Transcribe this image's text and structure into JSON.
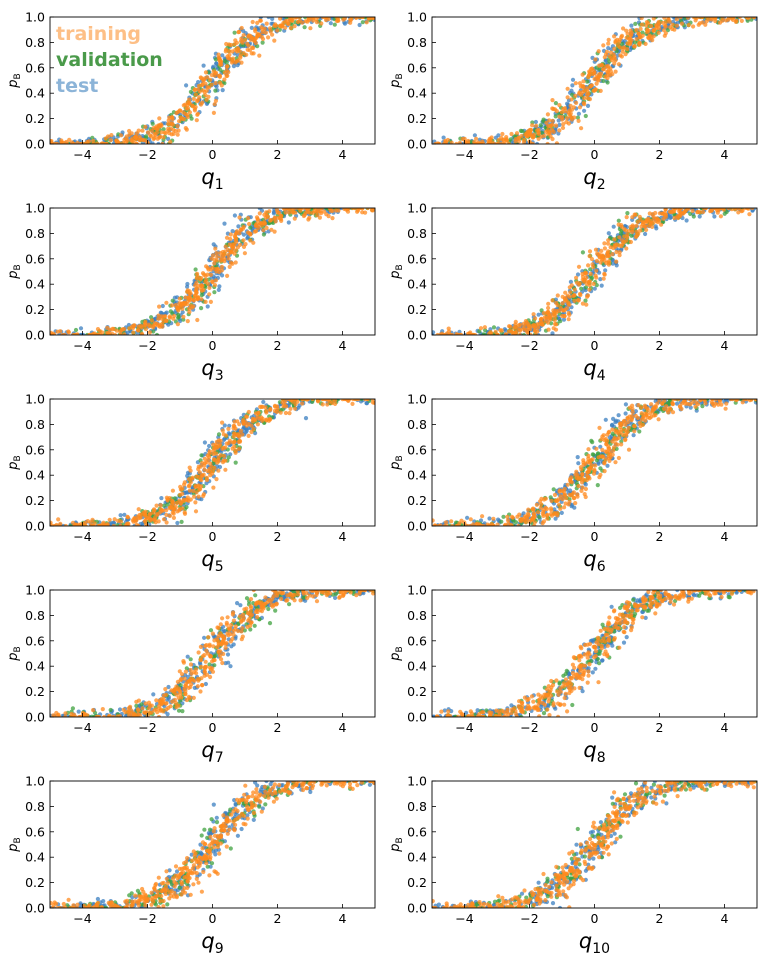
{
  "chart_data": [
    {
      "type": "scatter",
      "xlabel_base": "q",
      "xlabel_sub": "1",
      "ylabel_base": "p",
      "ylabel_sub": "B",
      "xlim": [
        -5,
        5
      ],
      "ylim": [
        0,
        1
      ],
      "xticks": [
        "−4",
        "−2",
        "0",
        "2",
        "4"
      ],
      "yticks": [
        "0.0",
        "0.2",
        "0.4",
        "0.6",
        "0.8",
        "1.0"
      ],
      "series": [
        {
          "name": "training",
          "curve": "sigmoid",
          "x0": 0.0,
          "k": 1.3,
          "x_range": [
            -5,
            5
          ],
          "y_spread": 0.1
        },
        {
          "name": "validation",
          "curve": "sigmoid",
          "x0": 0.0,
          "k": 1.3,
          "x_range": [
            -4.5,
            5
          ],
          "y_spread": 0.1
        },
        {
          "name": "test",
          "curve": "sigmoid",
          "x0": 0.0,
          "k": 1.3,
          "x_range": [
            -5,
            5
          ],
          "y_spread": 0.1
        }
      ]
    },
    {
      "type": "scatter",
      "xlabel_base": "q",
      "xlabel_sub": "2",
      "ylabel_base": "p",
      "ylabel_sub": "B",
      "xlim": [
        -5,
        5
      ],
      "ylim": [
        0,
        1
      ],
      "xticks": [
        "−4",
        "−2",
        "0",
        "2",
        "4"
      ],
      "yticks": [
        "0.0",
        "0.2",
        "0.4",
        "0.6",
        "0.8",
        "1.0"
      ],
      "series": [
        {
          "name": "training",
          "curve": "sigmoid",
          "x0": 0.0,
          "k": 1.3,
          "x_range": [
            -5,
            5
          ],
          "y_spread": 0.1
        },
        {
          "name": "validation",
          "curve": "sigmoid",
          "x0": 0.0,
          "k": 1.3,
          "x_range": [
            -4.5,
            5
          ],
          "y_spread": 0.1
        },
        {
          "name": "test",
          "curve": "sigmoid",
          "x0": 0.0,
          "k": 1.3,
          "x_range": [
            -5,
            5
          ],
          "y_spread": 0.1
        }
      ]
    },
    {
      "type": "scatter",
      "xlabel_base": "q",
      "xlabel_sub": "3",
      "ylabel_base": "p",
      "ylabel_sub": "B",
      "xlim": [
        -5,
        5
      ],
      "ylim": [
        0,
        1
      ],
      "xticks": [
        "−4",
        "−2",
        "0",
        "2",
        "4"
      ],
      "yticks": [
        "0.0",
        "0.2",
        "0.4",
        "0.6",
        "0.8",
        "1.0"
      ],
      "series": [
        {
          "name": "training",
          "curve": "sigmoid",
          "x0": 0.0,
          "k": 1.3,
          "x_range": [
            -5,
            5
          ],
          "y_spread": 0.1
        },
        {
          "name": "validation",
          "curve": "sigmoid",
          "x0": 0.0,
          "k": 1.3,
          "x_range": [
            -4.5,
            5
          ],
          "y_spread": 0.1
        },
        {
          "name": "test",
          "curve": "sigmoid",
          "x0": 0.0,
          "k": 1.3,
          "x_range": [
            -5,
            5
          ],
          "y_spread": 0.1
        }
      ]
    },
    {
      "type": "scatter",
      "xlabel_base": "q",
      "xlabel_sub": "4",
      "ylabel_base": "p",
      "ylabel_sub": "B",
      "xlim": [
        -5,
        5
      ],
      "ylim": [
        0,
        1
      ],
      "xticks": [
        "−4",
        "−2",
        "0",
        "2",
        "4"
      ],
      "yticks": [
        "0.0",
        "0.2",
        "0.4",
        "0.6",
        "0.8",
        "1.0"
      ],
      "series": [
        {
          "name": "training",
          "curve": "sigmoid",
          "x0": 0.0,
          "k": 1.3,
          "x_range": [
            -5,
            5
          ],
          "y_spread": 0.1
        },
        {
          "name": "validation",
          "curve": "sigmoid",
          "x0": 0.0,
          "k": 1.3,
          "x_range": [
            -4.5,
            5
          ],
          "y_spread": 0.1
        },
        {
          "name": "test",
          "curve": "sigmoid",
          "x0": 0.0,
          "k": 1.3,
          "x_range": [
            -5,
            5
          ],
          "y_spread": 0.1
        }
      ]
    },
    {
      "type": "scatter",
      "xlabel_base": "q",
      "xlabel_sub": "5",
      "ylabel_base": "p",
      "ylabel_sub": "B",
      "xlim": [
        -5,
        5
      ],
      "ylim": [
        0,
        1
      ],
      "xticks": [
        "−4",
        "−2",
        "0",
        "2",
        "4"
      ],
      "yticks": [
        "0.0",
        "0.2",
        "0.4",
        "0.6",
        "0.8",
        "1.0"
      ],
      "series": [
        {
          "name": "training",
          "curve": "sigmoid",
          "x0": 0.0,
          "k": 1.3,
          "x_range": [
            -5,
            5
          ],
          "y_spread": 0.1
        },
        {
          "name": "validation",
          "curve": "sigmoid",
          "x0": 0.0,
          "k": 1.3,
          "x_range": [
            -4.5,
            5
          ],
          "y_spread": 0.1
        },
        {
          "name": "test",
          "curve": "sigmoid",
          "x0": 0.0,
          "k": 1.3,
          "x_range": [
            -5,
            5
          ],
          "y_spread": 0.1
        }
      ]
    },
    {
      "type": "scatter",
      "xlabel_base": "q",
      "xlabel_sub": "6",
      "ylabel_base": "p",
      "ylabel_sub": "B",
      "xlim": [
        -5,
        5
      ],
      "ylim": [
        0,
        1
      ],
      "xticks": [
        "−4",
        "−2",
        "0",
        "2",
        "4"
      ],
      "yticks": [
        "0.0",
        "0.2",
        "0.4",
        "0.6",
        "0.8",
        "1.0"
      ],
      "series": [
        {
          "name": "training",
          "curve": "sigmoid",
          "x0": 0.0,
          "k": 1.3,
          "x_range": [
            -5,
            5
          ],
          "y_spread": 0.1
        },
        {
          "name": "validation",
          "curve": "sigmoid",
          "x0": 0.0,
          "k": 1.3,
          "x_range": [
            -4.5,
            5
          ],
          "y_spread": 0.1
        },
        {
          "name": "test",
          "curve": "sigmoid",
          "x0": 0.0,
          "k": 1.3,
          "x_range": [
            -5,
            5
          ],
          "y_spread": 0.1
        }
      ]
    },
    {
      "type": "scatter",
      "xlabel_base": "q",
      "xlabel_sub": "7",
      "ylabel_base": "p",
      "ylabel_sub": "B",
      "xlim": [
        -5,
        5
      ],
      "ylim": [
        0,
        1
      ],
      "xticks": [
        "−4",
        "−2",
        "0",
        "2",
        "4"
      ],
      "yticks": [
        "0.0",
        "0.2",
        "0.4",
        "0.6",
        "0.8",
        "1.0"
      ],
      "series": [
        {
          "name": "training",
          "curve": "sigmoid",
          "x0": 0.0,
          "k": 1.3,
          "x_range": [
            -5,
            5
          ],
          "y_spread": 0.1
        },
        {
          "name": "validation",
          "curve": "sigmoid",
          "x0": 0.0,
          "k": 1.3,
          "x_range": [
            -4.5,
            5
          ],
          "y_spread": 0.1
        },
        {
          "name": "test",
          "curve": "sigmoid",
          "x0": 0.0,
          "k": 1.3,
          "x_range": [
            -5,
            5
          ],
          "y_spread": 0.1
        }
      ]
    },
    {
      "type": "scatter",
      "xlabel_base": "q",
      "xlabel_sub": "8",
      "ylabel_base": "p",
      "ylabel_sub": "B",
      "xlim": [
        -5,
        5
      ],
      "ylim": [
        0,
        1
      ],
      "xticks": [
        "−4",
        "−2",
        "0",
        "2",
        "4"
      ],
      "yticks": [
        "0.0",
        "0.2",
        "0.4",
        "0.6",
        "0.8",
        "1.0"
      ],
      "series": [
        {
          "name": "training",
          "curve": "sigmoid",
          "x0": 0.0,
          "k": 1.3,
          "x_range": [
            -5,
            5
          ],
          "y_spread": 0.1
        },
        {
          "name": "validation",
          "curve": "sigmoid",
          "x0": 0.0,
          "k": 1.3,
          "x_range": [
            -4.5,
            5
          ],
          "y_spread": 0.1
        },
        {
          "name": "test",
          "curve": "sigmoid",
          "x0": 0.0,
          "k": 1.3,
          "x_range": [
            -5,
            5
          ],
          "y_spread": 0.1
        }
      ]
    },
    {
      "type": "scatter",
      "xlabel_base": "q",
      "xlabel_sub": "9",
      "ylabel_base": "p",
      "ylabel_sub": "B",
      "xlim": [
        -5,
        5
      ],
      "ylim": [
        0,
        1
      ],
      "xticks": [
        "−4",
        "−2",
        "0",
        "2",
        "4"
      ],
      "yticks": [
        "0.0",
        "0.2",
        "0.4",
        "0.6",
        "0.8",
        "1.0"
      ],
      "series": [
        {
          "name": "training",
          "curve": "sigmoid",
          "x0": 0.0,
          "k": 1.3,
          "x_range": [
            -5,
            5
          ],
          "y_spread": 0.1
        },
        {
          "name": "validation",
          "curve": "sigmoid",
          "x0": 0.0,
          "k": 1.3,
          "x_range": [
            -4.5,
            5
          ],
          "y_spread": 0.1
        },
        {
          "name": "test",
          "curve": "sigmoid",
          "x0": 0.0,
          "k": 1.3,
          "x_range": [
            -5,
            5
          ],
          "y_spread": 0.1
        }
      ]
    },
    {
      "type": "scatter",
      "xlabel_base": "q",
      "xlabel_sub": "10",
      "ylabel_base": "p",
      "ylabel_sub": "B",
      "xlim": [
        -5,
        5
      ],
      "ylim": [
        0,
        1
      ],
      "xticks": [
        "−4",
        "−2",
        "0",
        "2",
        "4"
      ],
      "yticks": [
        "0.0",
        "0.2",
        "0.4",
        "0.6",
        "0.8",
        "1.0"
      ],
      "series": [
        {
          "name": "training",
          "curve": "sigmoid",
          "x0": 0.0,
          "k": 1.3,
          "x_range": [
            -5,
            5
          ],
          "y_spread": 0.1
        },
        {
          "name": "validation",
          "curve": "sigmoid",
          "x0": 0.0,
          "k": 1.3,
          "x_range": [
            -4.5,
            5
          ],
          "y_spread": 0.1
        },
        {
          "name": "test",
          "curve": "sigmoid",
          "x0": 0.0,
          "k": 1.3,
          "x_range": [
            -5,
            5
          ],
          "y_spread": 0.1
        }
      ]
    }
  ],
  "legend": {
    "placement": "top-left of first panel",
    "entries": [
      {
        "label": "training",
        "color": "#fdbf86"
      },
      {
        "label": "validation",
        "color": "#4a9a4a"
      },
      {
        "label": "test",
        "color": "#8cb4d8"
      }
    ]
  },
  "colors": {
    "training": "#ff8a1e",
    "validation": "#3fa23f",
    "test": "#3b7fc0"
  }
}
